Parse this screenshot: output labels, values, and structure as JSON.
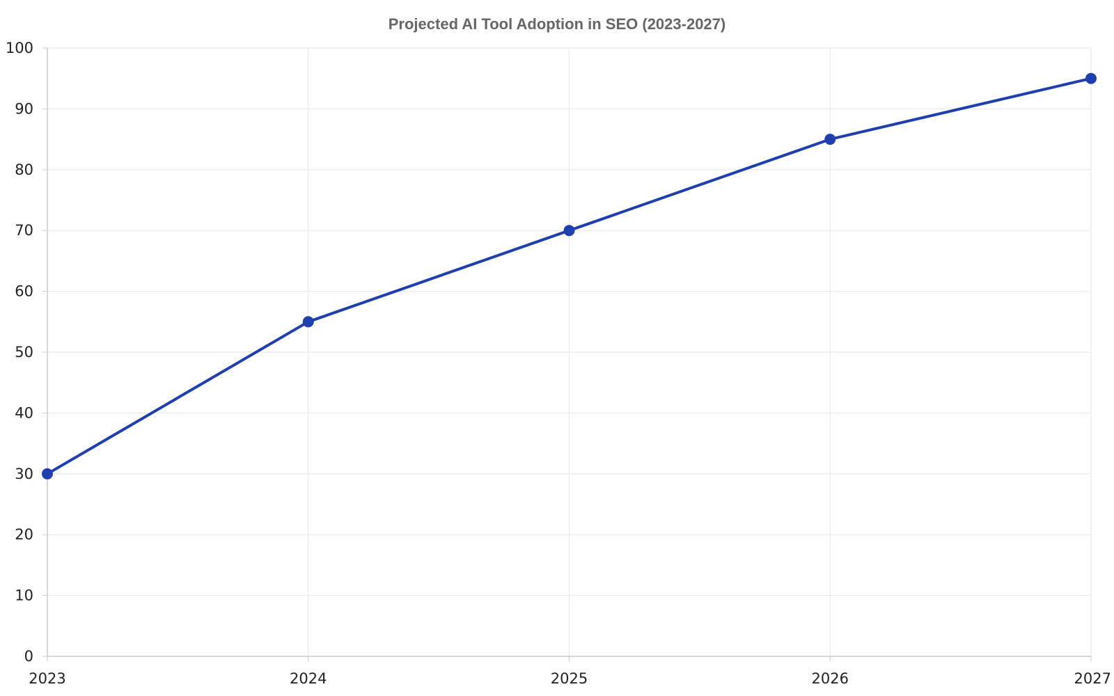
{
  "chart_data": {
    "type": "line",
    "title": "Projected AI Tool Adoption in SEO (2023-2027)",
    "xlabel": "",
    "ylabel": "",
    "x": [
      "2023",
      "2024",
      "2025",
      "2026",
      "2027"
    ],
    "series": [
      {
        "values": [
          30,
          55,
          70,
          85,
          95
        ],
        "color": "#1f3fae"
      }
    ],
    "ylim": [
      0,
      100
    ],
    "yticks": [
      0,
      10,
      20,
      30,
      40,
      50,
      60,
      70,
      80,
      90,
      100
    ],
    "ytick_labels": [
      "0",
      "10",
      "20",
      "30",
      "40",
      "50",
      "60",
      "70",
      "80",
      "90",
      "100"
    ],
    "xtick_labels": [
      "2023",
      "2024",
      "2025",
      "2026",
      "2027"
    ],
    "grid": true,
    "legend": "none",
    "colors": {
      "title": "#666666",
      "tick_text": "#222222",
      "grid": "#e6e6e6",
      "axis": "#cccccc"
    }
  }
}
